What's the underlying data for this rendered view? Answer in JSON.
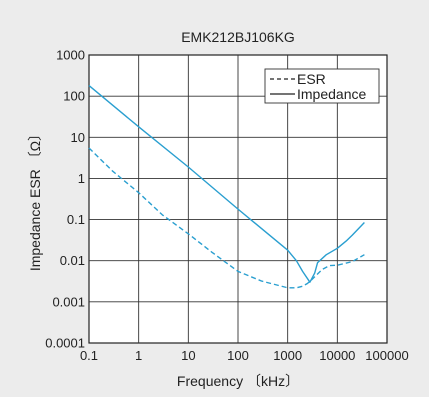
{
  "chart_data": {
    "type": "line",
    "title": "EMK212BJ106KG",
    "xlabel": "Frequency 〔kHz〕",
    "ylabel": "Impedance ESR 〔Ω〕",
    "x_scale": "log",
    "y_scale": "log",
    "xlim": [
      0.1,
      100000
    ],
    "ylim": [
      0.0001,
      1000
    ],
    "x_ticks": [
      "0.1",
      "1",
      "10",
      "100",
      "1000",
      "10000",
      "100000"
    ],
    "y_ticks": [
      "1000",
      "100",
      "10",
      "1",
      "0.1",
      "0.01",
      "0.001",
      "0.0001"
    ],
    "grid": true,
    "legend": "top-right",
    "color": "#2a9fd0",
    "series": [
      {
        "name": "ESR",
        "style": "dashed",
        "x": [
          0.1,
          0.3,
          1,
          3,
          10,
          30,
          100,
          300,
          1000,
          1500,
          2000,
          2500,
          3000,
          5000,
          7000,
          10000,
          20000,
          35000
        ],
        "y": [
          5.5,
          1.5,
          0.45,
          0.13,
          0.045,
          0.016,
          0.0055,
          0.0032,
          0.0022,
          0.0022,
          0.0024,
          0.0028,
          0.0034,
          0.0062,
          0.0076,
          0.0078,
          0.0095,
          0.014
        ]
      },
      {
        "name": "Impedance",
        "style": "solid",
        "x": [
          0.1,
          1,
          10,
          100,
          1000,
          1500,
          2000,
          2800,
          3500,
          4000,
          6000,
          10000,
          15000,
          20000,
          35000
        ],
        "y": [
          180,
          18,
          1.9,
          0.18,
          0.018,
          0.01,
          0.0055,
          0.003,
          0.005,
          0.009,
          0.014,
          0.02,
          0.03,
          0.042,
          0.085
        ]
      }
    ]
  }
}
